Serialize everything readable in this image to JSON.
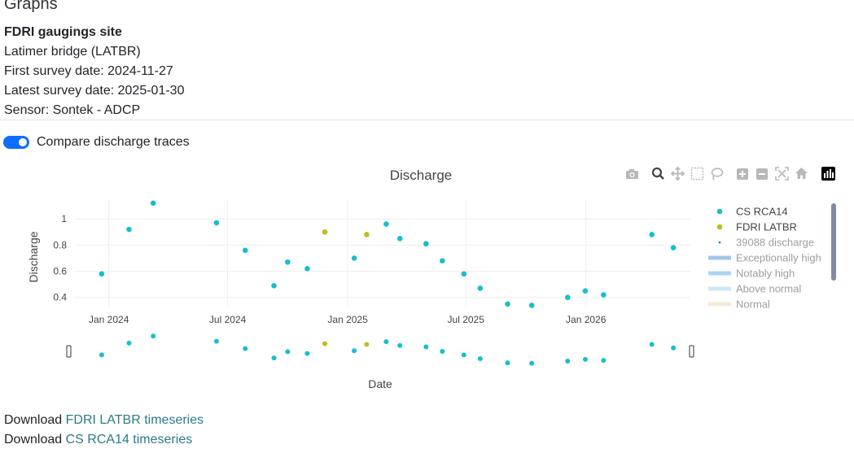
{
  "page": {
    "heading": "Graphs",
    "site_label": "FDRI gaugings site",
    "site_name": "Latimer bridge (LATBR)",
    "first_survey": "First survey date: 2024-11-27",
    "latest_survey": "Latest survey date: 2025-01-30",
    "sensor": "Sensor: Sontek - ADCP",
    "toggle": {
      "label": "Compare discharge traces",
      "checked": true
    },
    "downloads": [
      {
        "prefix": "Download",
        "link": "FDRI LATBR timeseries"
      },
      {
        "prefix": "Download",
        "link": "CS RCA14 timeseries"
      }
    ]
  },
  "modebar": {
    "icons": [
      "camera-icon",
      "zoom-icon",
      "pan-icon",
      "box-select-icon",
      "lasso-icon",
      "zoom-in-icon",
      "zoom-out-icon",
      "autoscale-icon",
      "reset-axes-icon",
      "plotly-logo-icon"
    ]
  },
  "chart_data": {
    "type": "scatter",
    "title": "Discharge",
    "xlabel": "Date",
    "ylabel": "Discharge",
    "x_ticks": [
      "Jan 2024",
      "Jul 2024",
      "Jan 2025",
      "Jul 2025",
      "Jan 2026"
    ],
    "x_tick_dates": [
      "2024-01-01",
      "2024-07-01",
      "2025-01-01",
      "2025-07-01",
      "2026-01-01"
    ],
    "y_ticks": [
      0.4,
      0.6,
      0.8,
      1
    ],
    "y_range": [
      0.33,
      1.15
    ],
    "x_range": [
      "2023-11-10",
      "2026-06-10"
    ],
    "grid": true,
    "legend_position": "right",
    "colors": {
      "cs": "#17becf",
      "fdri": "#bcbd22",
      "discharge": "#1f77b4",
      "exceptionally_high": "#a6c6e8",
      "notably_high": "#a9d6f0",
      "above_normal": "#cfe8f6",
      "normal": "#f2ecd6"
    },
    "series": [
      {
        "name": "CS RCA14",
        "color": "#17becf",
        "points": [
          {
            "x": "2023-12-21",
            "y": 0.58
          },
          {
            "x": "2024-02-01",
            "y": 0.92
          },
          {
            "x": "2024-03-09",
            "y": 1.12
          },
          {
            "x": "2024-06-14",
            "y": 0.97
          },
          {
            "x": "2024-07-28",
            "y": 0.76
          },
          {
            "x": "2024-09-10",
            "y": 0.49
          },
          {
            "x": "2024-10-01",
            "y": 0.67
          },
          {
            "x": "2024-10-31",
            "y": 0.62
          },
          {
            "x": "2025-01-11",
            "y": 0.7
          },
          {
            "x": "2025-03-01",
            "y": 0.96
          },
          {
            "x": "2025-03-22",
            "y": 0.85
          },
          {
            "x": "2025-05-01",
            "y": 0.81
          },
          {
            "x": "2025-05-26",
            "y": 0.68
          },
          {
            "x": "2025-06-28",
            "y": 0.58
          },
          {
            "x": "2025-07-23",
            "y": 0.47
          },
          {
            "x": "2025-09-03",
            "y": 0.35
          },
          {
            "x": "2025-10-10",
            "y": 0.34
          },
          {
            "x": "2025-12-04",
            "y": 0.4
          },
          {
            "x": "2025-12-31",
            "y": 0.45
          },
          {
            "x": "2026-01-28",
            "y": 0.42
          },
          {
            "x": "2026-04-12",
            "y": 0.88
          },
          {
            "x": "2026-05-15",
            "y": 0.78
          }
        ]
      },
      {
        "name": "FDRI LATBR",
        "color": "#bcbd22",
        "points": [
          {
            "x": "2024-11-27",
            "y": 0.9
          },
          {
            "x": "2025-01-30",
            "y": 0.88
          }
        ]
      },
      {
        "name": "39088 discharge",
        "color": "#1f77b4",
        "points": []
      }
    ],
    "legend": [
      {
        "name": "CS RCA14",
        "kind": "marker",
        "color": "#17becf",
        "active": true
      },
      {
        "name": "FDRI LATBR",
        "kind": "marker",
        "color": "#bcbd22",
        "active": true
      },
      {
        "name": "39088 discharge",
        "kind": "small-marker",
        "color": "#1f77b4",
        "active": false
      },
      {
        "name": "Exceptionally high",
        "kind": "line",
        "color": "#a6c6e8",
        "active": false
      },
      {
        "name": "Notably high",
        "kind": "line",
        "color": "#a9d6f0",
        "active": false
      },
      {
        "name": "Above normal",
        "kind": "line",
        "color": "#cfe8f6",
        "active": false
      },
      {
        "name": "Normal",
        "kind": "line",
        "color": "#f2ecd6",
        "active": false
      }
    ]
  }
}
